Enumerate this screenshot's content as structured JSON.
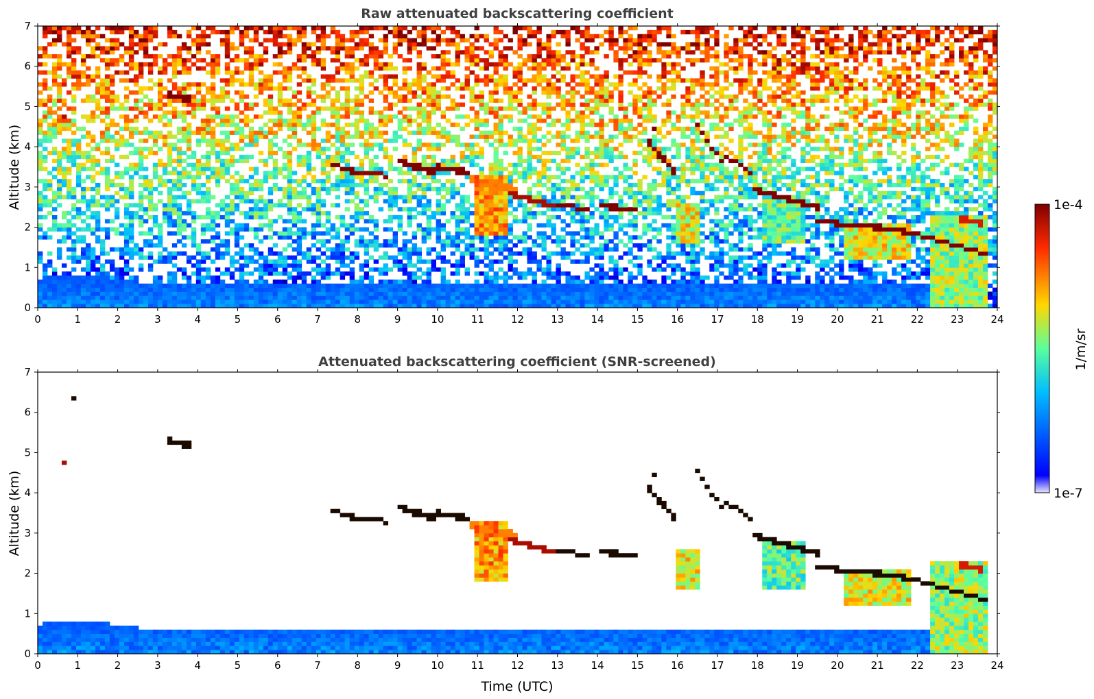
{
  "chart_data": [
    {
      "type": "heatmap",
      "title": "Raw attenuated backscattering coefficient",
      "xlabel": "",
      "ylabel": "Altitude (km)",
      "xlim": [
        0,
        24
      ],
      "ylim": [
        0,
        7
      ],
      "x_ticks": [
        "0",
        "1",
        "2",
        "3",
        "4",
        "5",
        "6",
        "7",
        "8",
        "9",
        "10",
        "11",
        "12",
        "13",
        "14",
        "15",
        "16",
        "17",
        "18",
        "19",
        "20",
        "21",
        "22",
        "23",
        "24"
      ],
      "y_ticks": [
        "0",
        "1",
        "2",
        "3",
        "4",
        "5",
        "6",
        "7"
      ],
      "screened": false,
      "features": {
        "boundary_layer_top_km": 0.6,
        "elevated_layers": [
          {
            "t": [
              3.2,
              3.8
            ],
            "alt": [
              5.2,
              5.4
            ]
          },
          {
            "t": [
              7.3,
              10.8
            ],
            "alt": [
              3.3,
              3.6
            ]
          },
          {
            "t": [
              10.8,
              15.0
            ],
            "alt": [
              2.4,
              3.5
            ]
          },
          {
            "t": [
              15.2,
              17.9
            ],
            "alt": [
              3.3,
              4.6
            ]
          },
          {
            "t": [
              17.9,
              23.9
            ],
            "alt": [
              1.3,
              3.0
            ]
          }
        ]
      }
    },
    {
      "type": "heatmap",
      "title": "Attenuated backscattering coefficient (SNR-screened)",
      "xlabel": "Time (UTC)",
      "ylabel": "Altitude (km)",
      "xlim": [
        0,
        24
      ],
      "ylim": [
        0,
        7
      ],
      "x_ticks": [
        "0",
        "1",
        "2",
        "3",
        "4",
        "5",
        "6",
        "7",
        "8",
        "9",
        "10",
        "11",
        "12",
        "13",
        "14",
        "15",
        "16",
        "17",
        "18",
        "19",
        "20",
        "21",
        "22",
        "23",
        "24"
      ],
      "y_ticks": [
        "0",
        "1",
        "2",
        "3",
        "4",
        "5",
        "6",
        "7"
      ],
      "screened": true
    }
  ],
  "colorbar": {
    "label": "1/m/sr",
    "max_label": "1e-4",
    "min_label": "1e-7",
    "colormap": "jet",
    "scale": "log"
  }
}
